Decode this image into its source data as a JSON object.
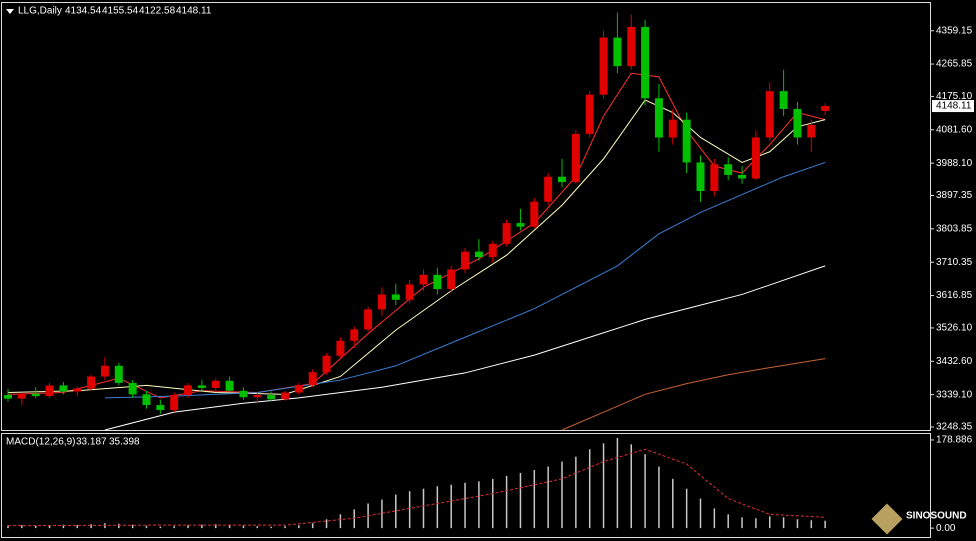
{
  "chart_data": [
    {
      "type": "candlestick",
      "title": "LLG,Daily",
      "header_values": [
        4134.54,
        4155.54,
        4122.58,
        4148.11
      ],
      "up_color": "#e00000",
      "down_color": "#00c000",
      "ohlc": [
        [
          3338,
          3355,
          3320,
          3328
        ],
        [
          3328,
          3345,
          3310,
          3342
        ],
        [
          3342,
          3360,
          3330,
          3335
        ],
        [
          3335,
          3372,
          3330,
          3365
        ],
        [
          3365,
          3375,
          3340,
          3348
        ],
        [
          3348,
          3362,
          3335,
          3356
        ],
        [
          3356,
          3395,
          3350,
          3390
        ],
        [
          3390,
          3445,
          3380,
          3420
        ],
        [
          3420,
          3428,
          3365,
          3372
        ],
        [
          3372,
          3380,
          3330,
          3340
        ],
        [
          3340,
          3350,
          3300,
          3310
        ],
        [
          3310,
          3325,
          3285,
          3296
        ],
        [
          3296,
          3345,
          3290,
          3338
        ],
        [
          3338,
          3372,
          3330,
          3365
        ],
        [
          3365,
          3380,
          3350,
          3358
        ],
        [
          3358,
          3385,
          3352,
          3378
        ],
        [
          3378,
          3390,
          3345,
          3350
        ],
        [
          3350,
          3360,
          3325,
          3332
        ],
        [
          3332,
          3345,
          3318,
          3338
        ],
        [
          3338,
          3348,
          3320,
          3326
        ],
        [
          3326,
          3350,
          3322,
          3345
        ],
        [
          3345,
          3372,
          3340,
          3366
        ],
        [
          3366,
          3410,
          3360,
          3402
        ],
        [
          3402,
          3455,
          3395,
          3448
        ],
        [
          3448,
          3500,
          3440,
          3490
        ],
        [
          3490,
          3530,
          3470,
          3522
        ],
        [
          3522,
          3585,
          3515,
          3578
        ],
        [
          3578,
          3640,
          3560,
          3620
        ],
        [
          3620,
          3650,
          3590,
          3605
        ],
        [
          3605,
          3660,
          3595,
          3648
        ],
        [
          3648,
          3690,
          3630,
          3675
        ],
        [
          3675,
          3695,
          3620,
          3635
        ],
        [
          3635,
          3700,
          3625,
          3690
        ],
        [
          3690,
          3750,
          3680,
          3740
        ],
        [
          3740,
          3775,
          3715,
          3725
        ],
        [
          3725,
          3770,
          3710,
          3762
        ],
        [
          3762,
          3830,
          3755,
          3820
        ],
        [
          3820,
          3860,
          3800,
          3810
        ],
        [
          3810,
          3890,
          3805,
          3880
        ],
        [
          3880,
          3960,
          3870,
          3950
        ],
        [
          3950,
          4000,
          3920,
          3935
        ],
        [
          3935,
          4080,
          3930,
          4070
        ],
        [
          4070,
          4190,
          4060,
          4180
        ],
        [
          4180,
          4360,
          4170,
          4340
        ],
        [
          4340,
          4410,
          4240,
          4260
        ],
        [
          4260,
          4405,
          4250,
          4370
        ],
        [
          4370,
          4390,
          4150,
          4170
        ],
        [
          4170,
          4210,
          4020,
          4060
        ],
        [
          4060,
          4140,
          4040,
          4110
        ],
        [
          4110,
          4130,
          3960,
          3990
        ],
        [
          3990,
          4010,
          3880,
          3910
        ],
        [
          3910,
          4000,
          3895,
          3985
        ],
        [
          3985,
          4005,
          3940,
          3955
        ],
        [
          3955,
          3980,
          3930,
          3945
        ],
        [
          3945,
          4080,
          3940,
          4060
        ],
        [
          4060,
          4215,
          4050,
          4190
        ],
        [
          4190,
          4250,
          4120,
          4140
        ],
        [
          4140,
          4160,
          4040,
          4060
        ],
        [
          4060,
          4110,
          4020,
          4095
        ],
        [
          4134.54,
          4155.54,
          4122.58,
          4148.11
        ]
      ],
      "lines": [
        {
          "color": "#ff3030",
          "x": [
            0,
            4,
            8,
            11,
            14,
            18,
            22,
            26,
            30,
            34,
            38,
            41,
            43,
            45,
            47,
            49,
            51,
            53,
            55,
            57,
            59
          ],
          "values": [
            3340,
            3345,
            3385,
            3330,
            3350,
            3345,
            3370,
            3510,
            3640,
            3720,
            3820,
            3950,
            4120,
            4240,
            4230,
            4080,
            3980,
            3960,
            4040,
            4130,
            4110
          ]
        },
        {
          "color": "#ffffc0",
          "x": [
            0,
            5,
            10,
            15,
            20,
            24,
            28,
            32,
            36,
            40,
            43,
            46,
            48,
            50,
            53,
            55,
            57,
            59
          ],
          "values": [
            3345,
            3350,
            3365,
            3345,
            3340,
            3390,
            3520,
            3630,
            3730,
            3870,
            4000,
            4165,
            4130,
            4060,
            3990,
            4020,
            4090,
            4110
          ]
        },
        {
          "color": "#3a7fd5",
          "x": [
            7,
            12,
            18,
            24,
            28,
            33,
            38,
            41,
            44,
            47,
            50,
            53,
            56,
            59
          ],
          "values": [
            3330,
            3335,
            3345,
            3380,
            3420,
            3500,
            3580,
            3640,
            3700,
            3790,
            3850,
            3900,
            3950,
            3990
          ]
        },
        {
          "color": "#ffffff",
          "x": [
            7,
            12,
            17,
            21,
            27,
            33,
            38,
            42,
            46,
            50,
            53,
            56,
            59
          ],
          "values": [
            3240,
            3290,
            3315,
            3330,
            3360,
            3400,
            3450,
            3500,
            3550,
            3590,
            3620,
            3660,
            3700
          ]
        },
        {
          "color": "#c86432",
          "x": [
            40,
            43,
            46,
            49,
            52,
            55,
            59
          ],
          "values": [
            3240,
            3290,
            3340,
            3370,
            3395,
            3415,
            3440
          ]
        }
      ],
      "ylim": [
        3240,
        4437
      ],
      "yticks": [
        4359.15,
        4265.85,
        {
          "value": 4175.1,
          "label": "4175.10"
        },
        {
          "value": 4081.6,
          "label": "4081.60"
        },
        {
          "value": 3988.1,
          "label": "3988.10"
        },
        3897.35,
        3803.85,
        3710.35,
        3616.85,
        {
          "value": 3526.1,
          "label": "3526.10"
        },
        {
          "value": 3432.6,
          "label": "3432.60"
        },
        {
          "value": 3339.1,
          "label": "3339.10"
        },
        3248.35
      ]
    },
    {
      "type": "macd",
      "title": "MACD(12,26,9)",
      "header_values": [
        33.187,
        35.398
      ],
      "histogram": {
        "color": "#c8c8c8",
        "values": [
          5,
          6,
          5,
          6,
          7,
          6,
          8,
          10,
          9,
          7,
          5,
          3,
          4,
          6,
          7,
          8,
          7,
          5,
          4,
          3,
          4,
          6,
          10,
          18,
          28,
          38,
          50,
          58,
          68,
          75,
          80,
          85,
          88,
          92,
          95,
          100,
          106,
          112,
          118,
          125,
          135,
          145,
          160,
          172,
          183,
          170,
          150,
          125,
          100,
          80,
          60,
          40,
          28,
          22,
          20,
          24,
          22,
          18,
          16,
          15
        ]
      },
      "signal": {
        "color": "#e03030",
        "x": [
          0,
          10,
          20,
          25,
          30,
          35,
          40,
          43,
          46,
          49,
          52,
          55,
          59
        ],
        "values": [
          5,
          6,
          6,
          20,
          45,
          70,
          100,
          135,
          160,
          130,
          60,
          28,
          22
        ]
      },
      "ylim": [
        -20,
        193
      ],
      "yticks": [
        178.886,
        {
          "value": 0,
          "label": "0.00"
        }
      ]
    }
  ],
  "logo": "SINOSOUND"
}
